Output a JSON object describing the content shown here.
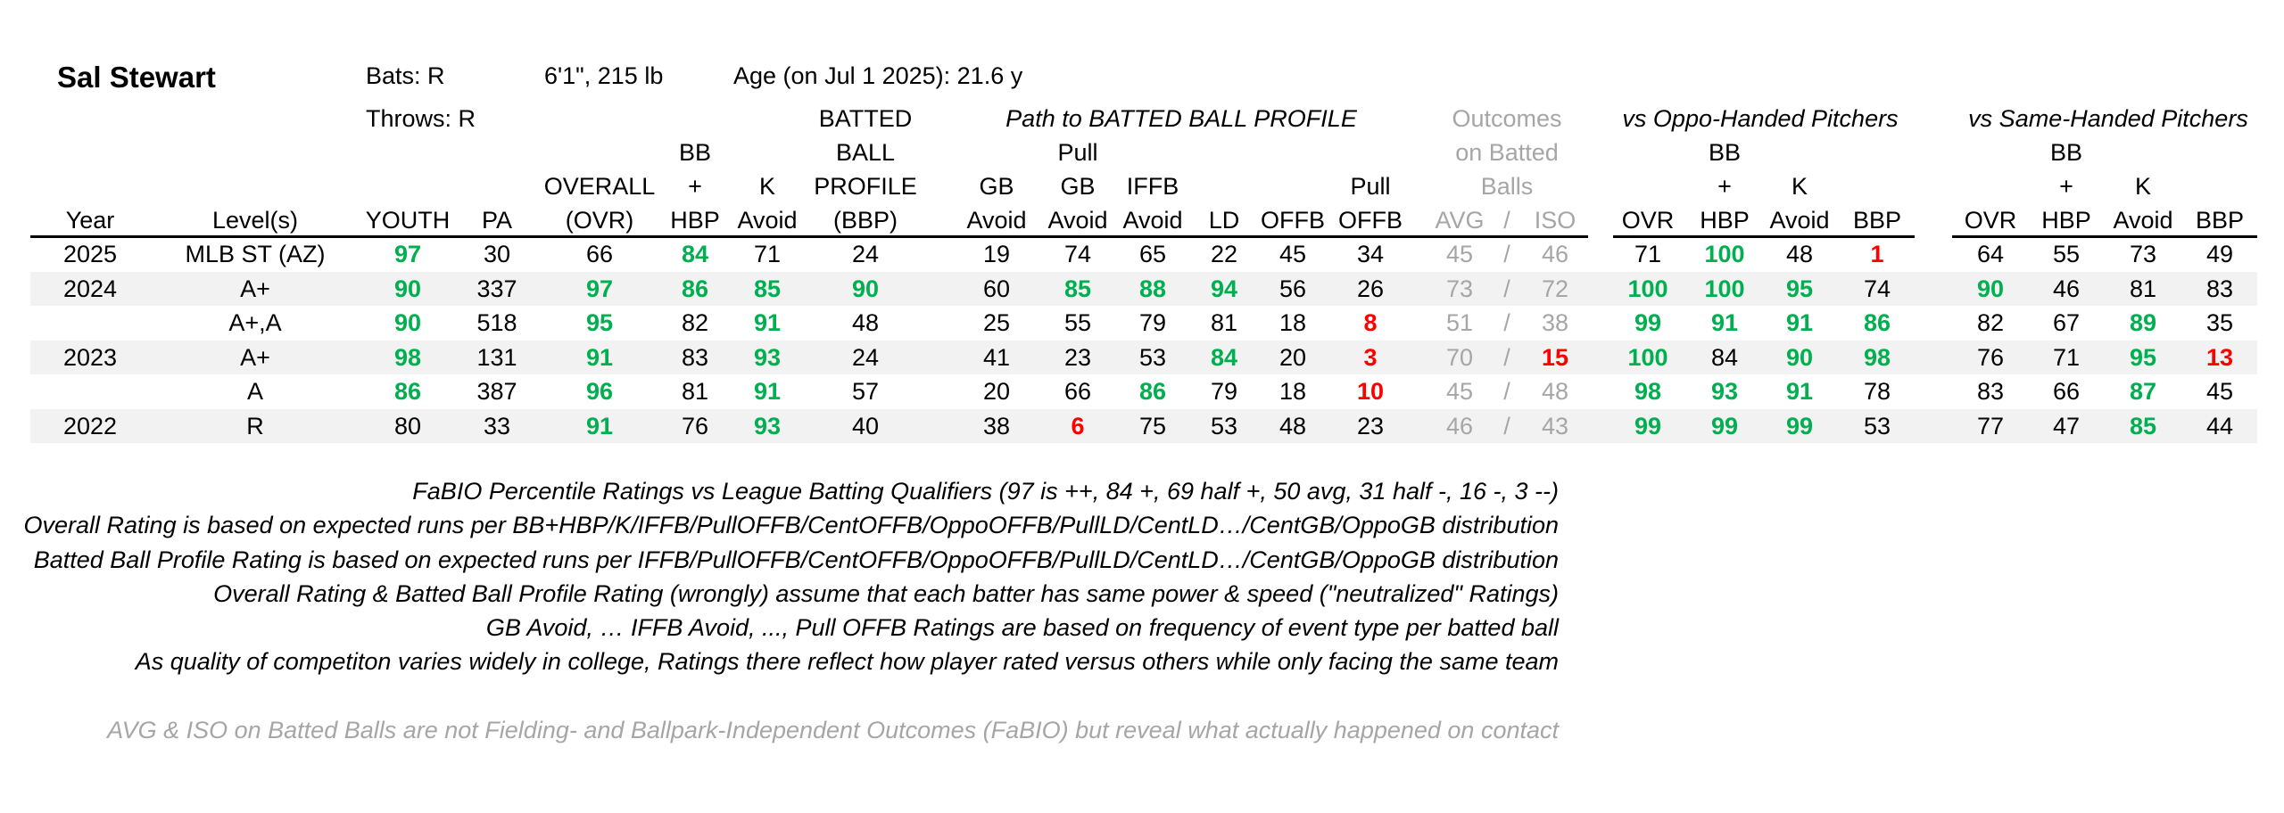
{
  "player": {
    "name": "Sal Stewart",
    "bats": "Bats: R",
    "throws": "Throws: R",
    "size": "6'1\", 215 lb",
    "age": "Age (on Jul 1 2025): 21.6 y"
  },
  "group_headers": {
    "path": "Path to BATTED BALL PROFILE",
    "outcomes": [
      "Outcomes",
      "on Batted",
      "Balls"
    ],
    "vs_oppo": "vs Oppo-Handed Pitchers",
    "vs_same": "vs Same-Handed Pitchers"
  },
  "columns": {
    "year": "Year",
    "level": "Level(s)",
    "youth": "YOUTH",
    "pa": "PA",
    "ovr": [
      "OVERALL",
      "(OVR)"
    ],
    "bbhbp": [
      "BB",
      "+",
      "HBP"
    ],
    "kavoid": [
      "K",
      "Avoid"
    ],
    "bbp": [
      "BATTED",
      "BALL",
      "PROFILE",
      "(BBP)"
    ],
    "gbavoid": [
      "GB",
      "Avoid"
    ],
    "pullgb": [
      "Pull",
      "GB",
      "Avoid"
    ],
    "iffb": [
      "IFFB",
      "Avoid"
    ],
    "ld": "LD",
    "offb": "OFFB",
    "pulloffb": [
      "Pull",
      "OFFB"
    ],
    "avgiso": [
      "AVG",
      "/",
      "ISO"
    ],
    "o_ovr": "OVR",
    "o_bbhbp": [
      "BB",
      "+",
      "HBP"
    ],
    "o_k": [
      "K",
      "Avoid"
    ],
    "o_bbp": "BBP",
    "s_ovr": "OVR",
    "s_bbhbp": [
      "BB",
      "+",
      "HBP"
    ],
    "s_k": [
      "K",
      "Avoid"
    ],
    "s_bbp": "BBP"
  },
  "rows": [
    {
      "year": "2025",
      "level": "MLB ST (AZ)",
      "vals": [
        [
          "97",
          "g"
        ],
        [
          "30",
          "n"
        ],
        [
          "66",
          "n"
        ],
        [
          "84",
          "g"
        ],
        [
          "71",
          "n"
        ],
        [
          "24",
          "n"
        ],
        [
          "19",
          "n"
        ],
        [
          "74",
          "n"
        ],
        [
          "65",
          "n"
        ],
        [
          "22",
          "n"
        ],
        [
          "45",
          "n"
        ],
        [
          "34",
          "n"
        ],
        [
          "45",
          "gy"
        ],
        [
          "46",
          "gy"
        ],
        [
          "71",
          "n"
        ],
        [
          "100",
          "g"
        ],
        [
          "48",
          "n"
        ],
        [
          "1",
          "r"
        ],
        [
          "64",
          "n"
        ],
        [
          "55",
          "n"
        ],
        [
          "73",
          "n"
        ],
        [
          "49",
          "n"
        ]
      ]
    },
    {
      "year": "2024",
      "level": "A+",
      "vals": [
        [
          "90",
          "g"
        ],
        [
          "337",
          "n"
        ],
        [
          "97",
          "g"
        ],
        [
          "86",
          "g"
        ],
        [
          "85",
          "g"
        ],
        [
          "90",
          "g"
        ],
        [
          "60",
          "n"
        ],
        [
          "85",
          "g"
        ],
        [
          "88",
          "g"
        ],
        [
          "94",
          "g"
        ],
        [
          "56",
          "n"
        ],
        [
          "26",
          "n"
        ],
        [
          "73",
          "gy"
        ],
        [
          "72",
          "gy"
        ],
        [
          "100",
          "g"
        ],
        [
          "100",
          "g"
        ],
        [
          "95",
          "g"
        ],
        [
          "74",
          "n"
        ],
        [
          "90",
          "g"
        ],
        [
          "46",
          "n"
        ],
        [
          "81",
          "n"
        ],
        [
          "83",
          "n"
        ]
      ]
    },
    {
      "year": "",
      "level": "A+,A",
      "vals": [
        [
          "90",
          "g"
        ],
        [
          "518",
          "n"
        ],
        [
          "95",
          "g"
        ],
        [
          "82",
          "n"
        ],
        [
          "91",
          "g"
        ],
        [
          "48",
          "n"
        ],
        [
          "25",
          "n"
        ],
        [
          "55",
          "n"
        ],
        [
          "79",
          "n"
        ],
        [
          "81",
          "n"
        ],
        [
          "18",
          "n"
        ],
        [
          "8",
          "r"
        ],
        [
          "51",
          "gy"
        ],
        [
          "38",
          "gy"
        ],
        [
          "99",
          "g"
        ],
        [
          "91",
          "g"
        ],
        [
          "91",
          "g"
        ],
        [
          "86",
          "g"
        ],
        [
          "82",
          "n"
        ],
        [
          "67",
          "n"
        ],
        [
          "89",
          "g"
        ],
        [
          "35",
          "n"
        ]
      ]
    },
    {
      "year": "2023",
      "level": "A+",
      "vals": [
        [
          "98",
          "g"
        ],
        [
          "131",
          "n"
        ],
        [
          "91",
          "g"
        ],
        [
          "83",
          "n"
        ],
        [
          "93",
          "g"
        ],
        [
          "24",
          "n"
        ],
        [
          "41",
          "n"
        ],
        [
          "23",
          "n"
        ],
        [
          "53",
          "n"
        ],
        [
          "84",
          "g"
        ],
        [
          "20",
          "n"
        ],
        [
          "3",
          "r"
        ],
        [
          "70",
          "gy"
        ],
        [
          "15",
          "r"
        ],
        [
          "100",
          "g"
        ],
        [
          "84",
          "n"
        ],
        [
          "90",
          "g"
        ],
        [
          "98",
          "g"
        ],
        [
          "76",
          "n"
        ],
        [
          "71",
          "n"
        ],
        [
          "95",
          "g"
        ],
        [
          "13",
          "r"
        ]
      ]
    },
    {
      "year": "",
      "level": "A",
      "vals": [
        [
          "86",
          "g"
        ],
        [
          "387",
          "n"
        ],
        [
          "96",
          "g"
        ],
        [
          "81",
          "n"
        ],
        [
          "91",
          "g"
        ],
        [
          "57",
          "n"
        ],
        [
          "20",
          "n"
        ],
        [
          "66",
          "n"
        ],
        [
          "86",
          "g"
        ],
        [
          "79",
          "n"
        ],
        [
          "18",
          "n"
        ],
        [
          "10",
          "r"
        ],
        [
          "45",
          "gy"
        ],
        [
          "48",
          "gy"
        ],
        [
          "98",
          "g"
        ],
        [
          "93",
          "g"
        ],
        [
          "91",
          "g"
        ],
        [
          "78",
          "n"
        ],
        [
          "83",
          "n"
        ],
        [
          "66",
          "n"
        ],
        [
          "87",
          "g"
        ],
        [
          "45",
          "n"
        ]
      ]
    },
    {
      "year": "2022",
      "level": "R",
      "vals": [
        [
          "80",
          "n"
        ],
        [
          "33",
          "n"
        ],
        [
          "91",
          "g"
        ],
        [
          "76",
          "n"
        ],
        [
          "93",
          "g"
        ],
        [
          "40",
          "n"
        ],
        [
          "38",
          "n"
        ],
        [
          "6",
          "r"
        ],
        [
          "75",
          "n"
        ],
        [
          "53",
          "n"
        ],
        [
          "48",
          "n"
        ],
        [
          "23",
          "n"
        ],
        [
          "46",
          "gy"
        ],
        [
          "43",
          "gy"
        ],
        [
          "99",
          "g"
        ],
        [
          "99",
          "g"
        ],
        [
          "99",
          "g"
        ],
        [
          "53",
          "n"
        ],
        [
          "77",
          "n"
        ],
        [
          "47",
          "n"
        ],
        [
          "85",
          "g"
        ],
        [
          "44",
          "n"
        ]
      ]
    }
  ],
  "notes": [
    "FaBIO Percentile Ratings vs League Batting Qualifiers (97 is ++, 84 +, 69 half +, 50 avg, 31 half -, 16 -, 3 --)",
    "Overall Rating is based on expected runs per BB+HBP/K/IFFB/PullOFFB/CentOFFB/OppoOFFB/PullLD/CentLD…/CentGB/OppoGB distribution",
    "Batted Ball Profile Rating is based on expected runs per IFFB/PullOFFB/CentOFFB/OppoOFFB/PullLD/CentLD…/CentGB/OppoGB distribution",
    "Overall Rating & Batted Ball Profile Rating (wrongly) assume that each batter has same power & speed (\"neutralized\" Ratings)",
    "GB Avoid, … IFFB Avoid, ..., Pull OFFB Ratings are based on frequency of event type per batted ball",
    "As quality of competiton varies widely in college, Ratings there reflect how player rated versus others while only facing the same team"
  ],
  "footnote": "AVG & ISO on Batted Balls are not Fielding- and Ballpark-Independent Outcomes (FaBIO) but reveal what actually happened on contact",
  "colors": {
    "good": "#00b050",
    "bad": "#ff0000",
    "muted": "#a6a6a6",
    "band": "#f2f2f2"
  }
}
